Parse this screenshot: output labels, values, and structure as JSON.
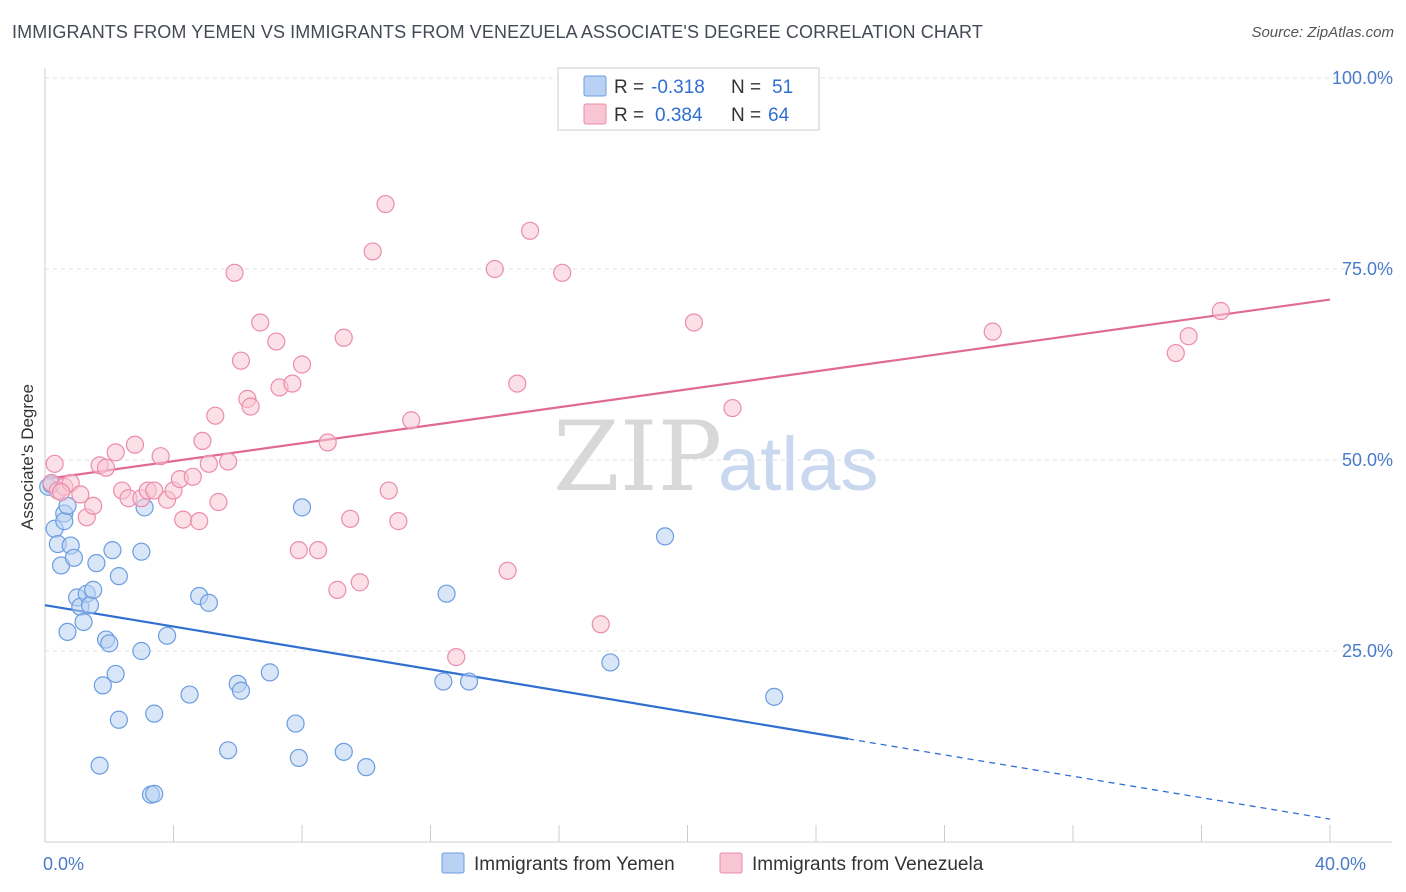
{
  "header": {
    "title": "IMMIGRANTS FROM YEMEN VS IMMIGRANTS FROM VENEZUELA ASSOCIATE'S DEGREE CORRELATION CHART",
    "source": "Source: ZipAtlas.com"
  },
  "watermark": {
    "part1": "ZIP",
    "part2": "atlas"
  },
  "legend": {
    "rows": [
      {
        "r_label": "R =",
        "r_value": "-0.318",
        "n_label": "N =",
        "n_value": "51",
        "color": "#a9c7f0"
      },
      {
        "r_label": "R =",
        "r_value": "0.384",
        "n_label": "N =",
        "n_value": "64",
        "color": "#f5b8cb"
      }
    ]
  },
  "chart_data": {
    "type": "scatter",
    "ylabel": "Associate's Degree",
    "xlim": [
      0,
      40
    ],
    "ylim": [
      0,
      100
    ],
    "y_ticks": [
      {
        "value": 25,
        "label": "25.0%"
      },
      {
        "value": 50,
        "label": "50.0%"
      },
      {
        "value": 75,
        "label": "75.0%"
      },
      {
        "value": 100,
        "label": "100.0%"
      }
    ],
    "x_ticks": [
      {
        "value": 0,
        "label": "0.0%"
      },
      {
        "value": 40,
        "label": "40.0%"
      }
    ],
    "grid": true,
    "series": [
      {
        "name": "Immigrants from Yemen",
        "color": "#6b9de0",
        "fill": "#b9d1f2",
        "trend": {
          "x0": 0,
          "y0": 31.0,
          "x1": 25,
          "y1": 13.5,
          "dash_to_x": 40,
          "dash_to_y": 3.0,
          "color": "#2f6fd0"
        },
        "points": [
          [
            0.1,
            46.5
          ],
          [
            0.3,
            41.0
          ],
          [
            0.4,
            39.0
          ],
          [
            0.5,
            36.2
          ],
          [
            0.6,
            43.0
          ],
          [
            0.6,
            42.0
          ],
          [
            0.7,
            44.0
          ],
          [
            0.7,
            27.5
          ],
          [
            0.8,
            38.8
          ],
          [
            0.9,
            37.2
          ],
          [
            1.0,
            32.0
          ],
          [
            1.1,
            30.8
          ],
          [
            1.2,
            28.8
          ],
          [
            1.3,
            32.5
          ],
          [
            1.4,
            31.0
          ],
          [
            1.5,
            33.0
          ],
          [
            1.6,
            36.5
          ],
          [
            1.7,
            10.0
          ],
          [
            1.8,
            20.5
          ],
          [
            1.9,
            26.5
          ],
          [
            2.0,
            26.0
          ],
          [
            2.1,
            38.2
          ],
          [
            2.2,
            22.0
          ],
          [
            2.3,
            34.8
          ],
          [
            2.3,
            16.0
          ],
          [
            3.0,
            25.0
          ],
          [
            3.0,
            38.0
          ],
          [
            3.1,
            43.8
          ],
          [
            3.3,
            6.2
          ],
          [
            3.4,
            6.3
          ],
          [
            3.4,
            16.8
          ],
          [
            3.8,
            27.0
          ],
          [
            4.5,
            19.3
          ],
          [
            4.8,
            32.2
          ],
          [
            5.1,
            31.3
          ],
          [
            5.7,
            12.0
          ],
          [
            6.0,
            20.7
          ],
          [
            6.1,
            19.8
          ],
          [
            7.0,
            22.2
          ],
          [
            7.8,
            15.5
          ],
          [
            7.9,
            11.0
          ],
          [
            8.0,
            43.8
          ],
          [
            9.3,
            11.8
          ],
          [
            10.0,
            9.8
          ],
          [
            12.4,
            21.0
          ],
          [
            12.5,
            32.5
          ],
          [
            13.2,
            21.0
          ],
          [
            17.6,
            23.5
          ],
          [
            19.3,
            40.0
          ],
          [
            22.7,
            19.0
          ],
          [
            0.2,
            46.8
          ]
        ]
      },
      {
        "name": "Immigrants from Venezuela",
        "color": "#ec8cab",
        "fill": "#f8c6d5",
        "trend": {
          "x0": 0,
          "y0": 47.5,
          "x1": 40,
          "y1": 71.0,
          "color": "#e06a95"
        },
        "points": [
          [
            0.2,
            47.0
          ],
          [
            0.3,
            49.5
          ],
          [
            0.4,
            46.0
          ],
          [
            0.6,
            46.5
          ],
          [
            0.8,
            47.0
          ],
          [
            1.1,
            45.5
          ],
          [
            1.3,
            42.5
          ],
          [
            1.5,
            44.0
          ],
          [
            1.7,
            49.3
          ],
          [
            1.9,
            49.0
          ],
          [
            2.2,
            51.0
          ],
          [
            2.4,
            46.0
          ],
          [
            2.6,
            45.0
          ],
          [
            2.8,
            52.0
          ],
          [
            3.0,
            45.0
          ],
          [
            3.2,
            46.0
          ],
          [
            3.4,
            46.0
          ],
          [
            3.6,
            50.5
          ],
          [
            3.8,
            44.8
          ],
          [
            4.0,
            46.0
          ],
          [
            4.2,
            47.5
          ],
          [
            4.3,
            42.2
          ],
          [
            4.6,
            47.8
          ],
          [
            4.8,
            42.0
          ],
          [
            4.9,
            52.5
          ],
          [
            5.1,
            49.5
          ],
          [
            5.3,
            55.8
          ],
          [
            5.4,
            44.5
          ],
          [
            5.7,
            49.8
          ],
          [
            5.9,
            74.5
          ],
          [
            6.1,
            63.0
          ],
          [
            6.3,
            58.0
          ],
          [
            6.4,
            57.0
          ],
          [
            6.7,
            68.0
          ],
          [
            7.2,
            65.5
          ],
          [
            7.3,
            59.5
          ],
          [
            7.7,
            60.0
          ],
          [
            7.9,
            38.2
          ],
          [
            8.0,
            62.5
          ],
          [
            8.5,
            38.2
          ],
          [
            8.8,
            52.3
          ],
          [
            9.1,
            33.0
          ],
          [
            9.3,
            66.0
          ],
          [
            9.5,
            42.3
          ],
          [
            9.8,
            34.0
          ],
          [
            10.2,
            77.3
          ],
          [
            10.6,
            83.5
          ],
          [
            10.7,
            46.0
          ],
          [
            11.0,
            42.0
          ],
          [
            11.4,
            55.2
          ],
          [
            12.8,
            24.2
          ],
          [
            14.0,
            75.0
          ],
          [
            14.4,
            35.5
          ],
          [
            14.7,
            60.0
          ],
          [
            15.1,
            80.0
          ],
          [
            16.1,
            74.5
          ],
          [
            17.3,
            28.5
          ],
          [
            20.2,
            68.0
          ],
          [
            21.4,
            56.8
          ],
          [
            29.5,
            66.8
          ],
          [
            35.2,
            64.0
          ],
          [
            35.6,
            66.2
          ],
          [
            36.6,
            69.5
          ],
          [
            0.5,
            45.8
          ]
        ]
      }
    ]
  }
}
